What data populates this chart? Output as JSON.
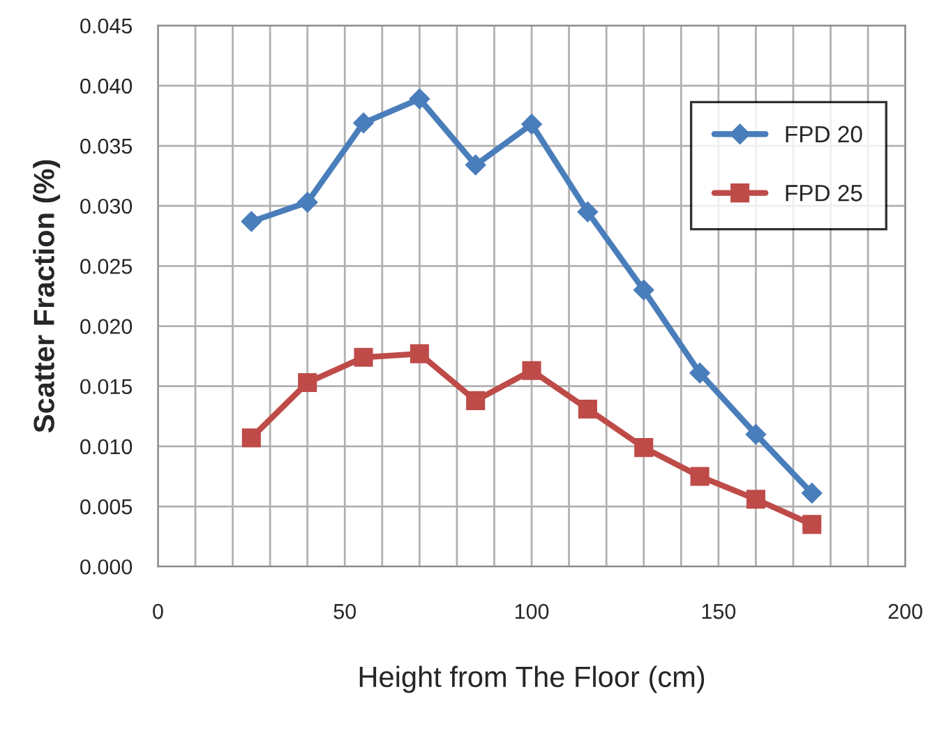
{
  "chart_data": {
    "type": "line",
    "xlabel": "Height from The Floor (cm)",
    "ylabel": "Scatter Fraction (%)",
    "x": [
      25,
      40,
      55,
      70,
      85,
      100,
      115,
      130,
      145,
      160,
      175
    ],
    "series": [
      {
        "name": "FPD 20",
        "color": "#4a7ebb",
        "marker": "diamond",
        "values": [
          0.0287,
          0.0303,
          0.0369,
          0.0389,
          0.0334,
          0.0368,
          0.0295,
          0.023,
          0.0161,
          0.011,
          0.0061
        ]
      },
      {
        "name": "FPD 25",
        "color": "#be4b48",
        "marker": "square",
        "values": [
          0.0107,
          0.0153,
          0.0174,
          0.0177,
          0.0138,
          0.0163,
          0.0131,
          0.0099,
          0.0075,
          0.0056,
          0.0035
        ]
      }
    ],
    "xlim": [
      0,
      200
    ],
    "ylim": [
      0,
      0.045
    ],
    "xticks": [
      0,
      {
        "value": 10,
        "label": null
      },
      {
        "value": 20,
        "label": null
      },
      {
        "value": 30,
        "label": null
      },
      {
        "value": 40,
        "label": null
      },
      50,
      {
        "value": 60,
        "label": null
      },
      {
        "value": 70,
        "label": null
      },
      {
        "value": 80,
        "label": null
      },
      {
        "value": 90,
        "label": null
      },
      100,
      {
        "value": 110,
        "label": null
      },
      {
        "value": 120,
        "label": null
      },
      {
        "value": 130,
        "label": null
      },
      {
        "value": 140,
        "label": null
      },
      150,
      {
        "value": 160,
        "label": null
      },
      {
        "value": 170,
        "label": null
      },
      {
        "value": 180,
        "label": null
      },
      {
        "value": 190,
        "label": null
      },
      200
    ],
    "yticks": [
      {
        "value": 0,
        "label": "0.000"
      },
      {
        "value": 0.005,
        "label": "0.005"
      },
      {
        "value": 0.01,
        "label": "0.010"
      },
      {
        "value": 0.015,
        "label": "0.015"
      },
      {
        "value": 0.02,
        "label": "0.020"
      },
      {
        "value": 0.025,
        "label": "0.025"
      },
      {
        "value": 0.03,
        "label": "0.030"
      },
      {
        "value": 0.035,
        "label": "0.035"
      },
      {
        "value": 0.04,
        "label": "0.040"
      },
      {
        "value": 0.045,
        "label": "0.045"
      }
    ],
    "grid": true,
    "legend": "top right",
    "line_style": "solid"
  }
}
